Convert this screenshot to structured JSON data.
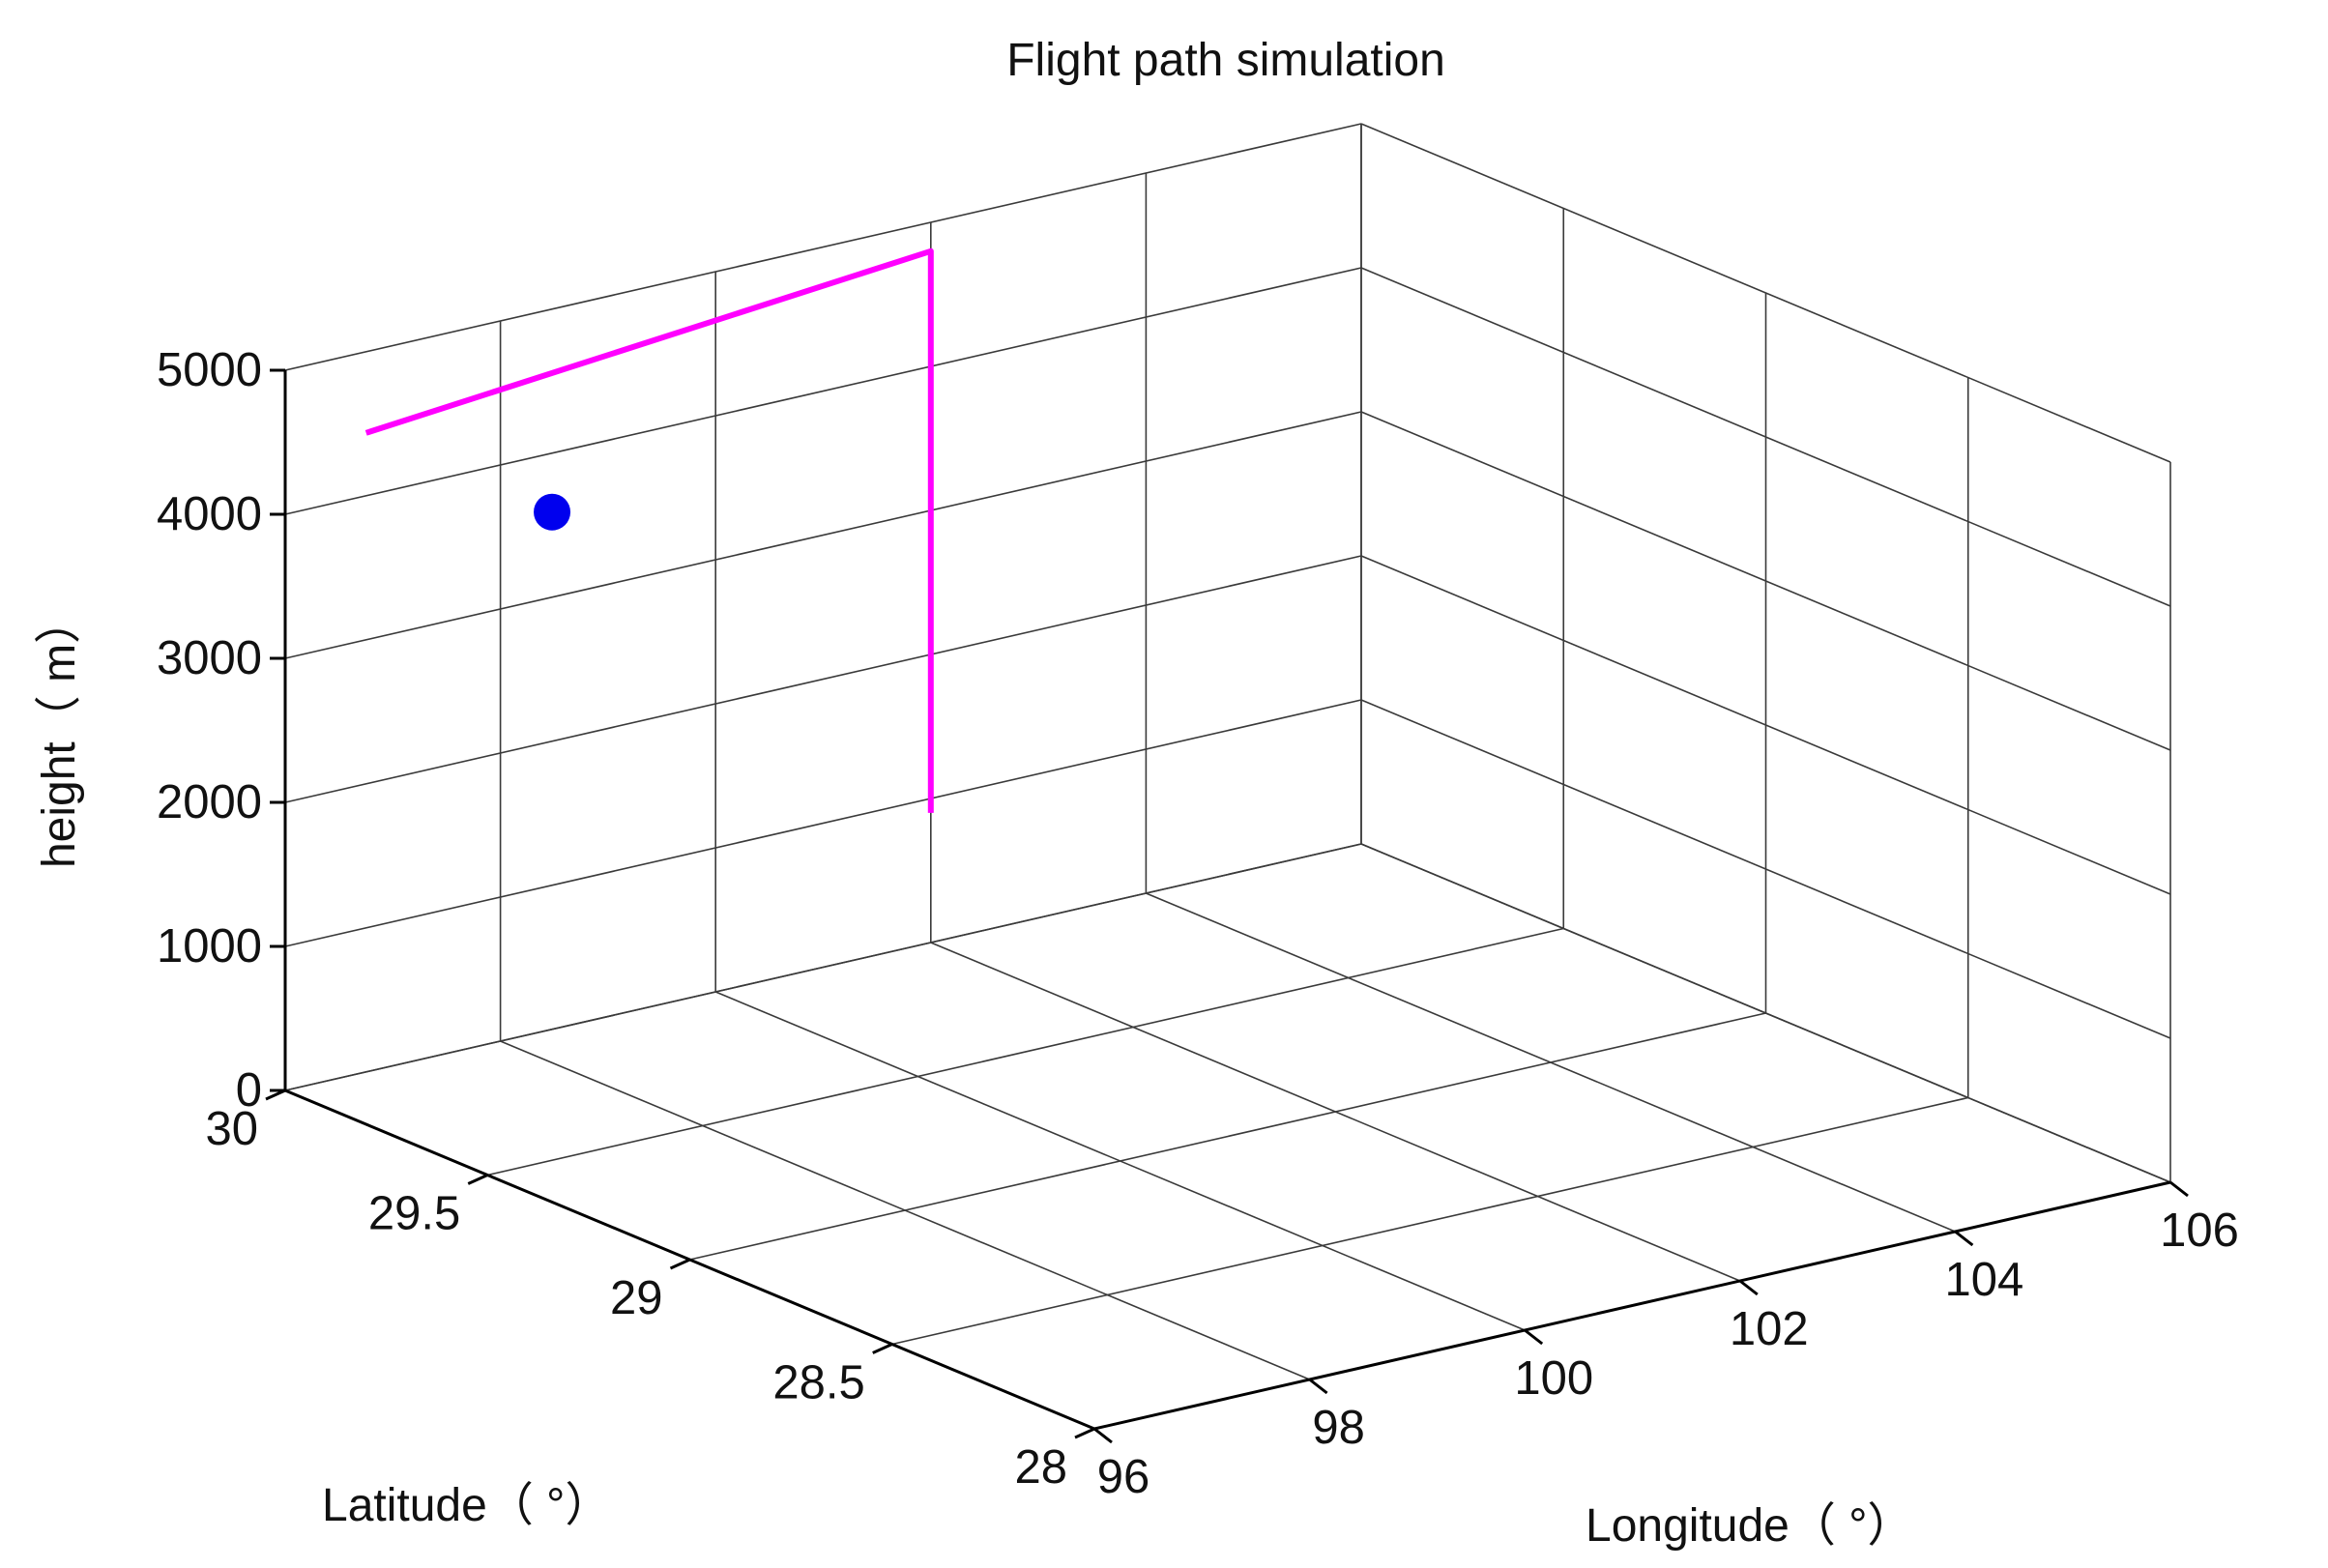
{
  "chart_data": {
    "type": "line",
    "projection": "3d",
    "title": "Flight path simulation",
    "xlabel": "Longitude（ °）",
    "ylabel": "Latitude（ °）",
    "zlabel": "height（ m）",
    "xlim": [
      96,
      106
    ],
    "ylim": [
      28,
      30
    ],
    "zlim": [
      0,
      5000
    ],
    "x_ticks": [
      "96",
      "98",
      "100",
      "102",
      "104",
      "106"
    ],
    "y_ticks": [
      "28",
      "28.5",
      "29",
      "29.5",
      "30"
    ],
    "z_ticks": [
      "0",
      "1000",
      "2000",
      "3000",
      "4000",
      "5000"
    ],
    "grid": true,
    "box": true,
    "series": [
      {
        "color": "#ff00ff",
        "marker": "none",
        "x": [
          102,
          102,
          96
        ],
        "y": [
          30,
          30,
          29.8
        ],
        "z": [
          900,
          4800,
          4800
        ]
      },
      {
        "color": "#0000ee",
        "marker": "filled-circle",
        "x": [
          96.6
        ],
        "y": [
          29.5
        ],
        "z": [
          4500
        ]
      }
    ]
  }
}
